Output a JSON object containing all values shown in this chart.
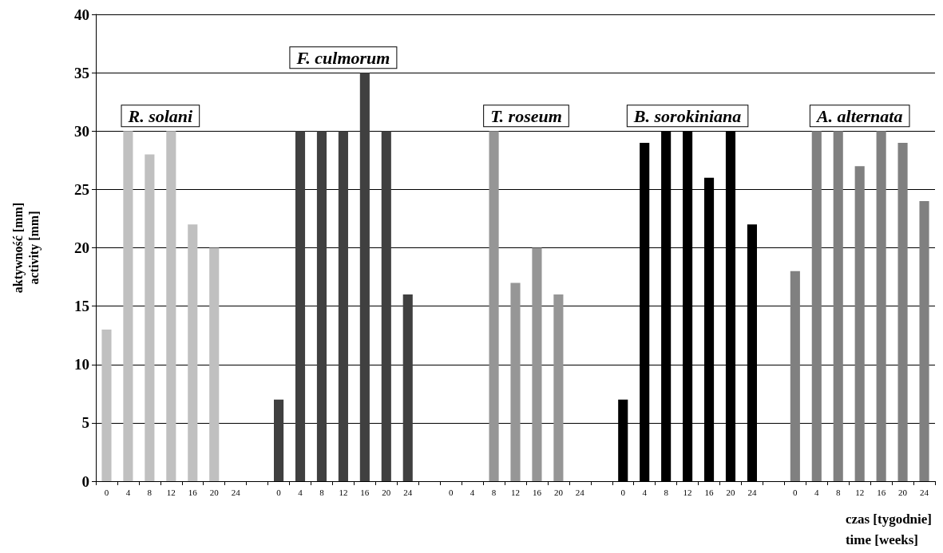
{
  "chart_data": {
    "type": "bar",
    "stacked": true,
    "ylabel": "aktywność [mm]\nactivity [mm]",
    "xlabel": "czas [tygodnie]\ntime [weeks]",
    "categories": [
      "0",
      "4",
      "8",
      "12",
      "16",
      "20",
      "24",
      null,
      "0",
      "4",
      "8",
      "12",
      "16",
      "20",
      "24",
      null,
      "0",
      "4",
      "8",
      "12",
      "16",
      "20",
      "24",
      null,
      "0",
      "4",
      "8",
      "12",
      "16",
      "20",
      "24",
      null,
      "0",
      "4",
      "8",
      "12",
      "16",
      "20",
      "24"
    ],
    "series": [
      {
        "name": "R. solani",
        "color": "#c0c0c0",
        "values": [
          13,
          30,
          28,
          30,
          22,
          20,
          null,
          null,
          null,
          null,
          null,
          null,
          null,
          null,
          null,
          null,
          null,
          null,
          null,
          null,
          null,
          null,
          null,
          null,
          null,
          null,
          null,
          null,
          null,
          null,
          null,
          null,
          null,
          null,
          null,
          null,
          null,
          null,
          null
        ]
      },
      {
        "name": "F. culmorum",
        "color": "#404040",
        "values": [
          null,
          null,
          null,
          null,
          null,
          null,
          null,
          null,
          7,
          30,
          30,
          30,
          35,
          30,
          16,
          null,
          null,
          null,
          null,
          null,
          null,
          null,
          null,
          null,
          null,
          null,
          null,
          null,
          null,
          null,
          null,
          null,
          null,
          null,
          null,
          null,
          null,
          null,
          null
        ]
      },
      {
        "name": "T. roseum",
        "color": "#969696",
        "values": [
          null,
          null,
          null,
          null,
          null,
          null,
          null,
          null,
          null,
          null,
          null,
          null,
          null,
          null,
          null,
          null,
          null,
          null,
          30,
          17,
          20,
          16,
          null,
          null,
          null,
          null,
          null,
          null,
          null,
          null,
          null,
          null,
          null,
          null,
          null,
          null,
          null,
          null,
          null
        ]
      },
      {
        "name": "B. sorokiniana",
        "color": "#000000",
        "values": [
          null,
          null,
          null,
          null,
          null,
          null,
          null,
          null,
          null,
          null,
          null,
          null,
          null,
          null,
          null,
          null,
          null,
          null,
          null,
          null,
          null,
          null,
          null,
          null,
          7,
          29,
          30,
          30,
          26,
          30,
          22,
          null,
          null,
          null,
          null,
          null,
          null,
          null,
          null
        ]
      },
      {
        "name": "A. alternata",
        "color": "#808080",
        "values": [
          null,
          null,
          null,
          null,
          null,
          null,
          null,
          null,
          null,
          null,
          null,
          null,
          null,
          null,
          null,
          null,
          null,
          null,
          null,
          null,
          null,
          null,
          null,
          null,
          null,
          null,
          null,
          null,
          null,
          null,
          null,
          null,
          18,
          30,
          30,
          27,
          30,
          29,
          24
        ]
      }
    ],
    "ylim": [
      0,
      40
    ],
    "yticks": [
      0,
      5,
      10,
      15,
      20,
      25,
      30,
      35,
      40
    ],
    "grid": "y",
    "legend": false
  }
}
